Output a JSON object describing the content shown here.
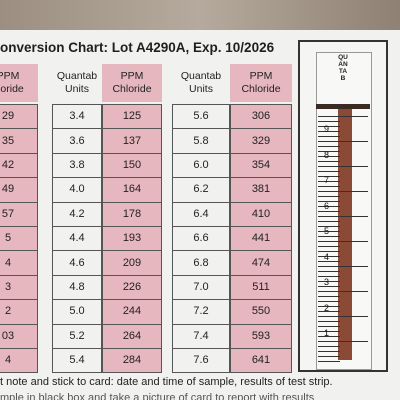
{
  "header": {
    "title": "onversion Chart: Lot A4290A, Exp. 10/2026"
  },
  "tables": [
    {
      "headers": [
        "PPM\nhloride"
      ],
      "rows": [
        [
          "29"
        ],
        [
          "35"
        ],
        [
          "42"
        ],
        [
          "49"
        ],
        [
          "57"
        ],
        [
          "5"
        ],
        [
          "4"
        ],
        [
          "3"
        ],
        [
          "2"
        ],
        [
          "03"
        ],
        [
          "4"
        ]
      ]
    },
    {
      "headers": [
        "Quantab\nUnits",
        "PPM\nChloride"
      ],
      "rows": [
        [
          "3.4",
          "125"
        ],
        [
          "3.6",
          "137"
        ],
        [
          "3.8",
          "150"
        ],
        [
          "4.0",
          "164"
        ],
        [
          "4.2",
          "178"
        ],
        [
          "4.4",
          "193"
        ],
        [
          "4.6",
          "209"
        ],
        [
          "4.8",
          "226"
        ],
        [
          "5.0",
          "244"
        ],
        [
          "5.2",
          "264"
        ],
        [
          "5.4",
          "284"
        ]
      ]
    },
    {
      "headers": [
        "Quantab\nUnits",
        "PPM\nChloride"
      ],
      "rows": [
        [
          "5.6",
          "306"
        ],
        [
          "5.8",
          "329"
        ],
        [
          "6.0",
          "354"
        ],
        [
          "6.2",
          "381"
        ],
        [
          "6.4",
          "410"
        ],
        [
          "6.6",
          "441"
        ],
        [
          "6.8",
          "474"
        ],
        [
          "7.0",
          "511"
        ],
        [
          "7.2",
          "550"
        ],
        [
          "7.4",
          "593"
        ],
        [
          "7.6",
          "641"
        ]
      ]
    }
  ],
  "strip": {
    "brand": "QUANTAB",
    "scale": [
      "9",
      "8",
      "7",
      "6",
      "5",
      "4",
      "3",
      "2",
      "1"
    ]
  },
  "footer": {
    "lines": [
      "t note and stick to card: date and time of sample, results of test strip.",
      "mple in black box and take a picture of card to report with results"
    ]
  }
}
